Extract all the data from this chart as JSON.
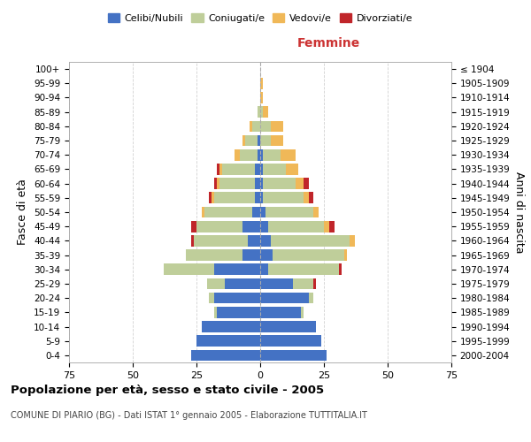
{
  "age_groups": [
    "0-4",
    "5-9",
    "10-14",
    "15-19",
    "20-24",
    "25-29",
    "30-34",
    "35-39",
    "40-44",
    "45-49",
    "50-54",
    "55-59",
    "60-64",
    "65-69",
    "70-74",
    "75-79",
    "80-84",
    "85-89",
    "90-94",
    "95-99",
    "100+"
  ],
  "birth_years": [
    "2000-2004",
    "1995-1999",
    "1990-1994",
    "1985-1989",
    "1980-1984",
    "1975-1979",
    "1970-1974",
    "1965-1969",
    "1960-1964",
    "1955-1959",
    "1950-1954",
    "1945-1949",
    "1940-1944",
    "1935-1939",
    "1930-1934",
    "1925-1929",
    "1920-1924",
    "1915-1919",
    "1910-1914",
    "1905-1909",
    "≤ 1904"
  ],
  "male": {
    "celibi": [
      27,
      25,
      23,
      17,
      18,
      14,
      18,
      7,
      5,
      7,
      3,
      2,
      2,
      2,
      1,
      1,
      0,
      0,
      0,
      0,
      0
    ],
    "coniugati": [
      0,
      0,
      0,
      1,
      2,
      7,
      20,
      22,
      21,
      18,
      19,
      16,
      14,
      13,
      7,
      5,
      3,
      1,
      0,
      0,
      0
    ],
    "vedovi": [
      0,
      0,
      0,
      0,
      0,
      0,
      0,
      0,
      0,
      0,
      1,
      1,
      1,
      1,
      2,
      1,
      1,
      0,
      0,
      0,
      0
    ],
    "divorziati": [
      0,
      0,
      0,
      0,
      0,
      0,
      0,
      0,
      1,
      2,
      0,
      1,
      1,
      1,
      0,
      0,
      0,
      0,
      0,
      0,
      0
    ]
  },
  "female": {
    "nubili": [
      26,
      24,
      22,
      16,
      19,
      13,
      3,
      5,
      4,
      3,
      2,
      1,
      1,
      1,
      1,
      0,
      0,
      0,
      0,
      0,
      0
    ],
    "coniugate": [
      0,
      0,
      0,
      1,
      2,
      8,
      28,
      28,
      31,
      22,
      19,
      16,
      13,
      9,
      7,
      4,
      4,
      1,
      0,
      0,
      0
    ],
    "vedove": [
      0,
      0,
      0,
      0,
      0,
      0,
      0,
      1,
      2,
      2,
      2,
      2,
      3,
      5,
      6,
      5,
      5,
      2,
      1,
      1,
      0
    ],
    "divorziate": [
      0,
      0,
      0,
      0,
      0,
      1,
      1,
      0,
      0,
      2,
      0,
      2,
      2,
      0,
      0,
      0,
      0,
      0,
      0,
      0,
      0
    ]
  },
  "colors": {
    "celibi": "#4472C4",
    "coniugati": "#BFCE9A",
    "vedovi": "#F0B858",
    "divorziati": "#C0252A"
  },
  "xlim": 75,
  "title": "Popolazione per età, sesso e stato civile - 2005",
  "subtitle": "COMUNE DI PIARIO (BG) - Dati ISTAT 1° gennaio 2005 - Elaborazione TUTTITALIA.IT",
  "ylabel_left": "Fasce di età",
  "ylabel_right": "Anni di nascita",
  "xlabel_right": "Femmine",
  "legend_labels": [
    "Celibi/Nubili",
    "Coniugati/e",
    "Vedovi/e",
    "Divorziati/e"
  ],
  "background_color": "#ffffff",
  "grid_color": "#cccccc"
}
